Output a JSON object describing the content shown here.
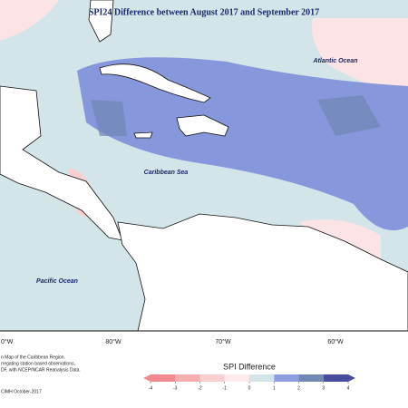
{
  "header": {
    "title": "SPI24 Difference between August 2017 and September 2017"
  },
  "map_labels": [
    "Atlantic Ocean",
    "Caribbean Sea",
    "Pacific Ocean"
  ],
  "longitude_labels": [
    "0°W",
    "80°W",
    "70°W",
    "60°W"
  ],
  "legend": {
    "title": "SPI Difference",
    "ticks": [
      -4,
      -3,
      -2,
      -1,
      0,
      1,
      2,
      3,
      4
    ],
    "colors": [
      "#f08a8e",
      "#f5afb1",
      "#f9cfd1",
      "#fdeaec",
      "#d2e4e8",
      "#8e9fe0",
      "#6f88b4",
      "#474c9e"
    ]
  },
  "footnote": [
    "n Map of the Caribbean Region.",
    "rregating station based observations,",
    "DF, with NCEP/NCAR Reanalysis Data."
  ],
  "credit": "CIMH October-2017"
}
